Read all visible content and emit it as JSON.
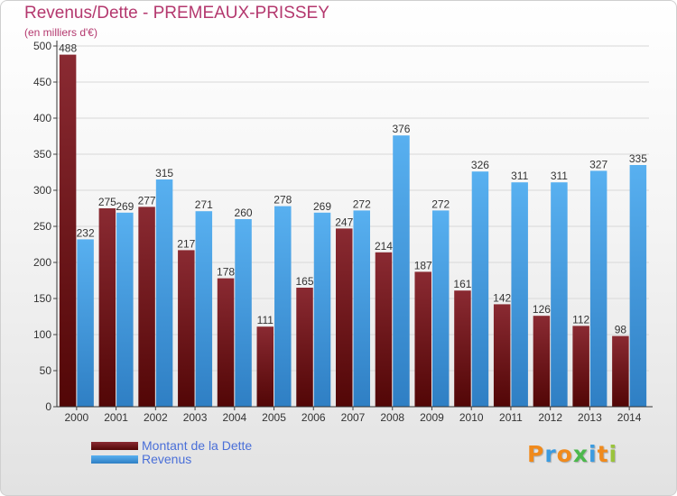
{
  "header": {
    "title": "Revenus/Dette - PREMEAUX-PRISSEY",
    "subtitle": "(en milliers d'€)"
  },
  "chart_data": {
    "type": "bar",
    "categories": [
      "2000",
      "2001",
      "2002",
      "2003",
      "2004",
      "2005",
      "2006",
      "2007",
      "2008",
      "2009",
      "2010",
      "2011",
      "2012",
      "2013",
      "2014"
    ],
    "series": [
      {
        "name": "Montant de la Dette",
        "values": [
          488,
          275,
          277,
          217,
          178,
          111,
          165,
          247,
          214,
          187,
          161,
          142,
          126,
          112,
          98
        ],
        "color": "#7a1a1f"
      },
      {
        "name": "Revenus",
        "values": [
          232,
          269,
          315,
          271,
          260,
          278,
          269,
          272,
          376,
          272,
          326,
          311,
          311,
          327,
          335
        ],
        "color": "#4ea6e6"
      }
    ],
    "value_labels": {
      "debt": [
        "488",
        "275",
        "277",
        "217",
        "178",
        "111",
        "165",
        "247",
        "214",
        "187",
        "161",
        "142",
        "126",
        "112",
        "98"
      ],
      "revenue": [
        "232",
        "269",
        "315",
        "271",
        "260",
        "278",
        "269",
        "272",
        "376",
        "272",
        "326",
        "311",
        "311",
        "327",
        "335"
      ]
    },
    "yticks": [
      "0",
      "50",
      "100",
      "150",
      "200",
      "250",
      "300",
      "350",
      "400",
      "450",
      "500"
    ],
    "ylim": [
      0,
      500
    ],
    "grid": true,
    "legend_position": "bottom-left"
  },
  "logo": {
    "letters": [
      "P",
      "r",
      "o",
      "x",
      "i",
      "t",
      "i"
    ],
    "colors": [
      "#f08a1c",
      "#3b9be0",
      "#f08a1c",
      "#4bb84b",
      "#3b9be0",
      "#f08a1c",
      "#9ac43c"
    ]
  }
}
